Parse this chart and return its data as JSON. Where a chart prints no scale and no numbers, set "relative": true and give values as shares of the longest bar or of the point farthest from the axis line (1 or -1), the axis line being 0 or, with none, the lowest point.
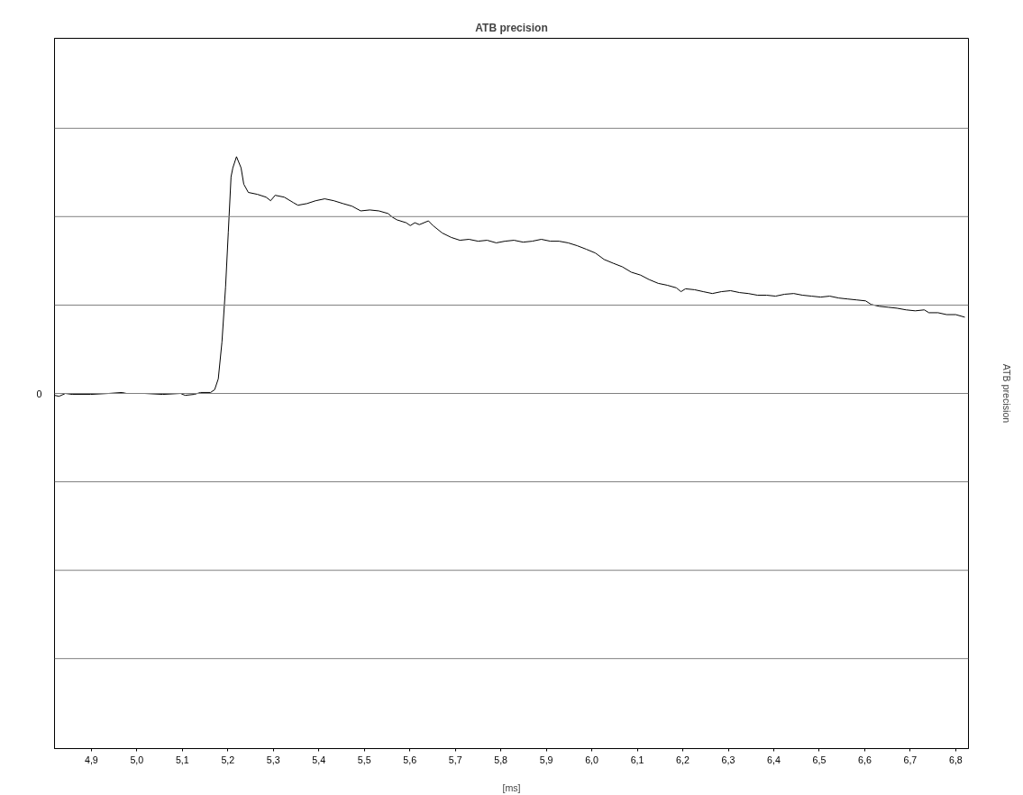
{
  "chart_data": {
    "type": "line",
    "title": "ATB precision",
    "xlabel": "[ms]",
    "y2label": "ATB precision",
    "relative": true,
    "ref_lines": [
      {
        "axis": "y",
        "value": 0,
        "label": "0",
        "color": "#808080"
      },
      {
        "axis": "y",
        "value": -1.12,
        "color": "#808080"
      },
      {
        "axis": "y",
        "value": -0.747,
        "color": "#808080"
      },
      {
        "axis": "y",
        "value": -0.373,
        "color": "#808080"
      },
      {
        "axis": "y",
        "value": 0.373,
        "color": "#808080"
      },
      {
        "axis": "y",
        "value": 0.747,
        "color": "#808080"
      },
      {
        "axis": "y",
        "value": 1.12,
        "color": "#808080"
      }
    ],
    "xlim": [
      4.819,
      6.828
    ],
    "xticks": [
      {
        "value": 4.9,
        "label": "4,9"
      },
      {
        "value": 5.0,
        "label": "5,0"
      },
      {
        "value": 5.1,
        "label": "5,1"
      },
      {
        "value": 5.2,
        "label": "5,2"
      },
      {
        "value": 5.3,
        "label": "5,3"
      },
      {
        "value": 5.4,
        "label": "5,4"
      },
      {
        "value": 5.5,
        "label": "5,5"
      },
      {
        "value": 5.6,
        "label": "5,6"
      },
      {
        "value": 5.7,
        "label": "5,7"
      },
      {
        "value": 5.8,
        "label": "5,8"
      },
      {
        "value": 5.9,
        "label": "5,9"
      },
      {
        "value": 6.0,
        "label": "6,0"
      },
      {
        "value": 6.1,
        "label": "6,1"
      },
      {
        "value": 6.2,
        "label": "6,2"
      },
      {
        "value": 6.3,
        "label": "6,3"
      },
      {
        "value": 6.4,
        "label": "6,4"
      },
      {
        "value": 6.5,
        "label": "6,5"
      },
      {
        "value": 6.6,
        "label": "6,6"
      },
      {
        "value": 6.7,
        "label": "6,7"
      },
      {
        "value": 6.8,
        "label": "6,8"
      }
    ],
    "marker": "none",
    "line_style": "solid",
    "tick_labels": "x",
    "series": [
      {
        "color": "#000000",
        "x": [
          4.819,
          4.829,
          4.843,
          4.858,
          4.898,
          4.938,
          4.967,
          4.977,
          5.017,
          5.057,
          5.096,
          5.106,
          5.126,
          5.14,
          5.162,
          5.171,
          5.179,
          5.187,
          5.195,
          5.201,
          5.207,
          5.211,
          5.219,
          5.229,
          5.235,
          5.245,
          5.265,
          5.284,
          5.294,
          5.304,
          5.324,
          5.344,
          5.354,
          5.374,
          5.393,
          5.413,
          5.433,
          5.453,
          5.473,
          5.492,
          5.512,
          5.532,
          5.552,
          5.562,
          5.572,
          5.592,
          5.601,
          5.611,
          5.621,
          5.641,
          5.651,
          5.671,
          5.691,
          5.71,
          5.73,
          5.75,
          5.77,
          5.79,
          5.809,
          5.829,
          5.849,
          5.869,
          5.889,
          5.909,
          5.928,
          5.948,
          5.968,
          5.988,
          6.008,
          6.027,
          6.047,
          6.067,
          6.087,
          6.107,
          6.126,
          6.146,
          6.166,
          6.186,
          6.196,
          6.206,
          6.226,
          6.245,
          6.265,
          6.285,
          6.305,
          6.325,
          6.344,
          6.364,
          6.384,
          6.404,
          6.424,
          6.444,
          6.463,
          6.483,
          6.503,
          6.523,
          6.543,
          6.562,
          6.582,
          6.602,
          6.614,
          6.632,
          6.652,
          6.671,
          6.691,
          6.711,
          6.731,
          6.741,
          6.761,
          6.78,
          6.8,
          6.82
        ],
        "values": [
          -0.008,
          -0.012,
          0,
          -0.004,
          -0.004,
          0,
          0.004,
          0,
          0,
          -0.004,
          0,
          -0.008,
          -0.004,
          0.004,
          0.004,
          0.016,
          0.062,
          0.217,
          0.45,
          0.682,
          0.915,
          0.953,
          1,
          0.953,
          0.884,
          0.849,
          0.841,
          0.829,
          0.814,
          0.837,
          0.829,
          0.806,
          0.795,
          0.802,
          0.814,
          0.822,
          0.814,
          0.802,
          0.791,
          0.771,
          0.775,
          0.771,
          0.76,
          0.744,
          0.733,
          0.721,
          0.709,
          0.721,
          0.713,
          0.729,
          0.709,
          0.678,
          0.659,
          0.647,
          0.651,
          0.643,
          0.647,
          0.636,
          0.643,
          0.647,
          0.639,
          0.643,
          0.651,
          0.643,
          0.643,
          0.636,
          0.624,
          0.609,
          0.593,
          0.566,
          0.55,
          0.535,
          0.512,
          0.5,
          0.481,
          0.465,
          0.457,
          0.446,
          0.43,
          0.442,
          0.438,
          0.43,
          0.422,
          0.43,
          0.434,
          0.426,
          0.422,
          0.415,
          0.415,
          0.411,
          0.419,
          0.422,
          0.415,
          0.411,
          0.407,
          0.411,
          0.403,
          0.399,
          0.395,
          0.391,
          0.376,
          0.368,
          0.364,
          0.36,
          0.353,
          0.349,
          0.353,
          0.341,
          0.341,
          0.333,
          0.333,
          0.322
        ]
      }
    ]
  }
}
